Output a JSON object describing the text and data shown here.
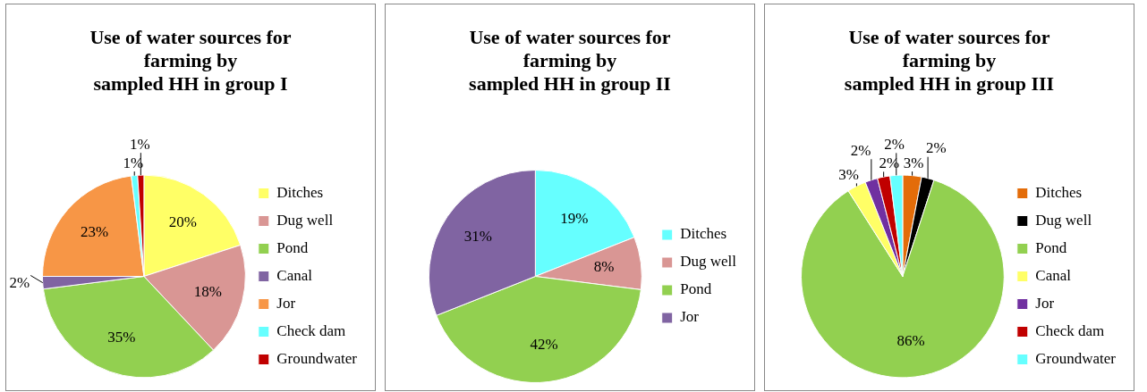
{
  "chart_data": [
    {
      "type": "pie",
      "title": "Use of water sources for\nfarming by\nsampled HH in group I",
      "categories": [
        "Ditches",
        "Dug well",
        "Pond",
        "Canal",
        "Jor",
        "Check dam",
        "Groundwater"
      ],
      "values": [
        20,
        18,
        35,
        2,
        23,
        1,
        1
      ],
      "colors": [
        "#ffff66",
        "#d99694",
        "#92d050",
        "#8064a2",
        "#f79646",
        "#66ffff",
        "#c00000"
      ],
      "value_labels": [
        "20%",
        "18%",
        "35%",
        "2%",
        "23%",
        "1%",
        "1%"
      ],
      "legend": "right"
    },
    {
      "type": "pie",
      "title": "Use of water sources for\nfarming by\nsampled HH in group II",
      "categories": [
        "Ditches",
        "Dug well",
        "Pond",
        "Jor"
      ],
      "values": [
        19,
        8,
        42,
        31
      ],
      "colors": [
        "#66ffff",
        "#d99694",
        "#92d050",
        "#8064a2"
      ],
      "value_labels": [
        "19%",
        "8%",
        "42%",
        "31%"
      ],
      "legend": "right"
    },
    {
      "type": "pie",
      "title": "Use of water sources for\nfarming by\nsampled HH in group III",
      "categories": [
        "Ditches",
        "Dug well",
        "Pond",
        "Canal",
        "Jor",
        "Check dam",
        "Groundwater"
      ],
      "values": [
        3,
        2,
        86,
        3,
        2,
        2,
        2
      ],
      "colors": [
        "#e36c09",
        "#000000",
        "#92d050",
        "#ffff66",
        "#7030a0",
        "#c00000",
        "#66ffff"
      ],
      "value_labels": [
        "3%",
        "2%",
        "86%",
        "3%",
        "2%",
        "2%",
        "2%"
      ],
      "legend": "right"
    }
  ]
}
